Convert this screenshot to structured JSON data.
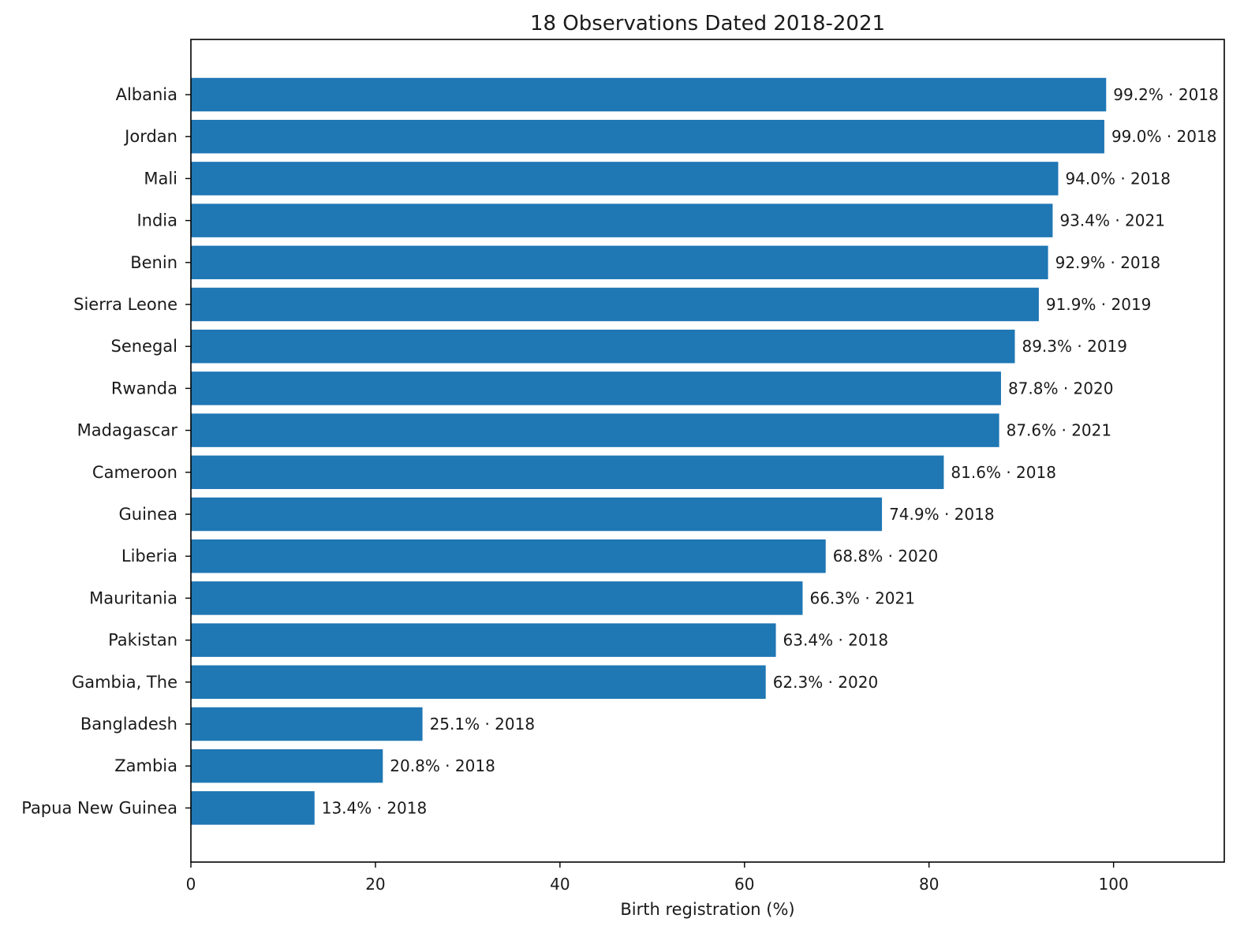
{
  "chart_data": {
    "type": "bar",
    "orientation": "horizontal",
    "title": "18 Observations Dated 2018-2021",
    "xlabel": "Birth registration (%)",
    "ylabel": "",
    "xlim": [
      0,
      112
    ],
    "xticks": [
      0,
      20,
      40,
      60,
      80,
      100
    ],
    "grid": false,
    "bar_color": "#1f77b4",
    "categories": [
      "Albania",
      "Jordan",
      "Mali",
      "India",
      "Benin",
      "Sierra Leone",
      "Senegal",
      "Rwanda",
      "Madagascar",
      "Cameroon",
      "Guinea",
      "Liberia",
      "Mauritania",
      "Pakistan",
      "Gambia, The",
      "Bangladesh",
      "Zambia",
      "Papua New Guinea"
    ],
    "values": [
      99.2,
      99.0,
      94.0,
      93.4,
      92.9,
      91.9,
      89.3,
      87.8,
      87.6,
      81.6,
      74.9,
      68.8,
      66.3,
      63.4,
      62.3,
      25.1,
      20.8,
      13.4
    ],
    "bar_labels": [
      "99.2% · 2018",
      "99.0% · 2018",
      "94.0% · 2018",
      "93.4% · 2021",
      "92.9% · 2018",
      "91.9% · 2019",
      "89.3% · 2019",
      "87.8% · 2020",
      "87.6% · 2021",
      "81.6% · 2018",
      "74.9% · 2018",
      "68.8% · 2020",
      "66.3% · 2021",
      "63.4% · 2018",
      "62.3% · 2020",
      "25.1% · 2018",
      "20.8% · 2018",
      "13.4% · 2018"
    ]
  }
}
